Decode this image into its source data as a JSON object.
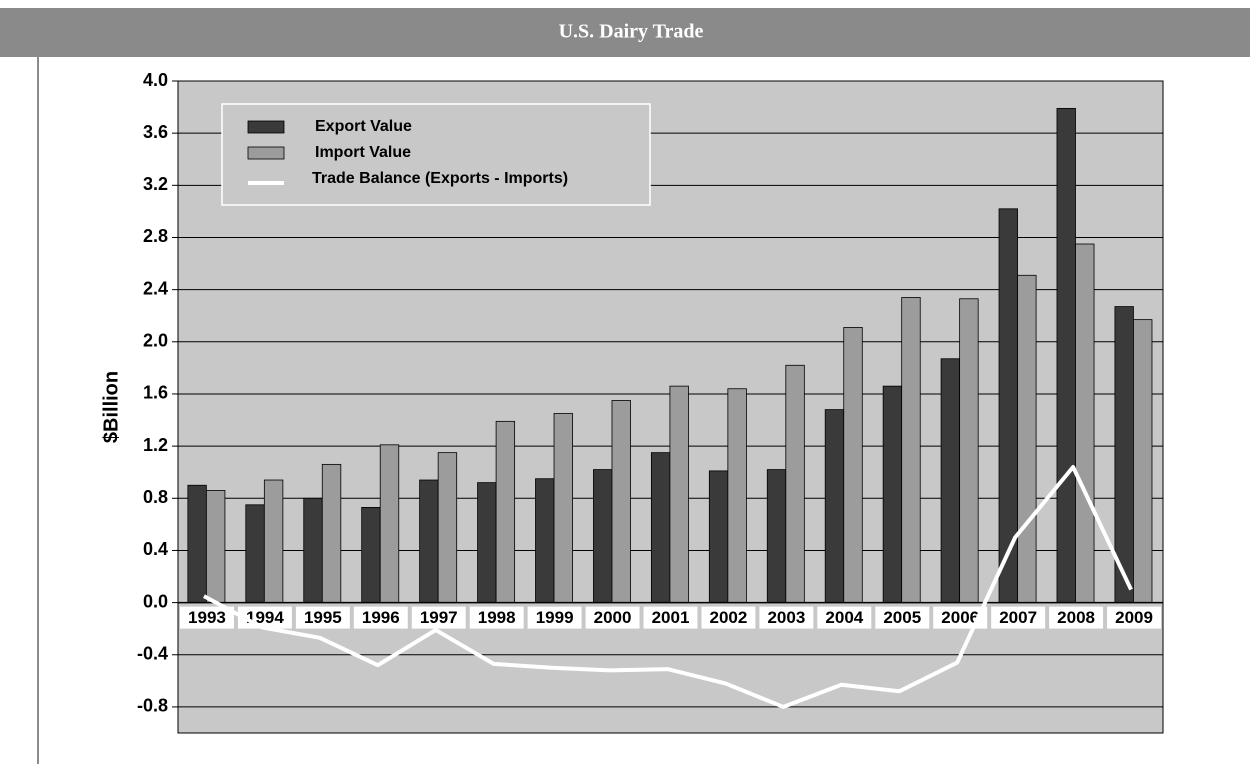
{
  "chart_data": {
    "type": "bar",
    "title": "U.S.  Dairy Trade",
    "ylabel": "$Billion",
    "categories": [
      "1993",
      "1994",
      "1995",
      "1996",
      "1997",
      "1998",
      "1999",
      "2000",
      "2001",
      "2002",
      "2003",
      "2004",
      "2005",
      "2006",
      "2007",
      "2008",
      "2009"
    ],
    "series": [
      {
        "name": "Export Value",
        "type": "bar",
        "color": "#3a3a3a",
        "values": [
          0.9,
          0.75,
          0.8,
          0.73,
          0.94,
          0.92,
          0.95,
          1.02,
          1.15,
          1.01,
          1.02,
          1.48,
          1.66,
          1.87,
          3.02,
          3.79,
          2.27
        ]
      },
      {
        "name": "Import Value",
        "type": "bar",
        "color": "#9c9c9c",
        "values": [
          0.86,
          0.94,
          1.06,
          1.21,
          1.15,
          1.39,
          1.45,
          1.55,
          1.66,
          1.64,
          1.82,
          2.11,
          2.34,
          2.33,
          2.51,
          2.75,
          2.17
        ]
      },
      {
        "name": "Trade Balance (Exports - Imports)",
        "type": "line",
        "color": "#ffffff",
        "values": [
          0.05,
          -0.19,
          -0.27,
          -0.48,
          -0.21,
          -0.47,
          -0.5,
          -0.52,
          -0.51,
          -0.62,
          -0.8,
          -0.63,
          -0.68,
          -0.46,
          0.5,
          1.04,
          0.1
        ]
      }
    ],
    "ylim": [
      -1.0,
      4.0
    ],
    "yticks": [
      {
        "value": 4.0,
        "label": "4.0"
      },
      {
        "value": 3.6,
        "label": "3.6"
      },
      {
        "value": 3.2,
        "label": "3.2"
      },
      {
        "value": 2.8,
        "label": "2.8"
      },
      {
        "value": 2.4,
        "label": "2.4"
      },
      {
        "value": 2.0,
        "label": "2.0"
      },
      {
        "value": 1.6,
        "label": "1.6"
      },
      {
        "value": 1.2,
        "label": "1.2"
      },
      {
        "value": 0.8,
        "label": "0.8"
      },
      {
        "value": 0.4,
        "label": "0.4"
      },
      {
        "value": 0,
        "label": "0.0"
      },
      {
        "value": -0.4,
        "label": "-0.4"
      },
      {
        "value": -0.8,
        "label": "-0.8"
      }
    ],
    "grid": true,
    "legend": "upper left"
  }
}
